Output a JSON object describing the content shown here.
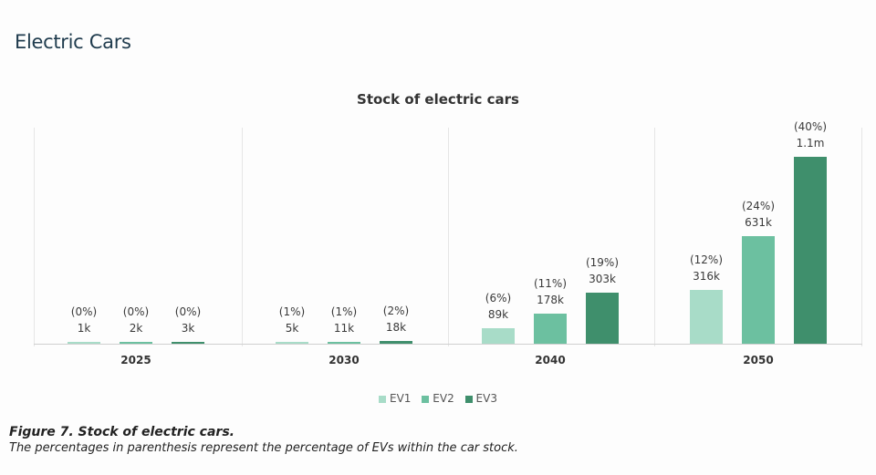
{
  "page": {
    "title": "Electric Cars"
  },
  "chart": {
    "title": "Stock of electric cars",
    "legend": [
      {
        "label": "EV1",
        "color": "#a8dcc8"
      },
      {
        "label": "EV2",
        "color": "#6cc0a0"
      },
      {
        "label": "EV3",
        "color": "#3f8f6c"
      }
    ],
    "groups": [
      {
        "category": "2025",
        "bars": [
          {
            "value": "1k",
            "pct": "(0%)"
          },
          {
            "value": "2k",
            "pct": "(0%)"
          },
          {
            "value": "3k",
            "pct": "(0%)"
          }
        ]
      },
      {
        "category": "2030",
        "bars": [
          {
            "value": "5k",
            "pct": "(1%)"
          },
          {
            "value": "11k",
            "pct": "(1%)"
          },
          {
            "value": "18k",
            "pct": "(2%)"
          }
        ]
      },
      {
        "category": "2040",
        "bars": [
          {
            "value": "89k",
            "pct": "(6%)"
          },
          {
            "value": "178k",
            "pct": "(11%)"
          },
          {
            "value": "303k",
            "pct": "(19%)"
          }
        ]
      },
      {
        "category": "2050",
        "bars": [
          {
            "value": "316k",
            "pct": "(12%)"
          },
          {
            "value": "631k",
            "pct": "(24%)"
          },
          {
            "value": "1.1m",
            "pct": "(40%)"
          }
        ]
      }
    ]
  },
  "caption": {
    "title": "Figure 7. Stock of electric cars.",
    "subtitle": "The percentages in parenthesis represent the percentage of EVs within the car stock."
  },
  "chart_data": {
    "type": "bar",
    "title": "Stock of electric cars",
    "categories": [
      "2025",
      "2030",
      "2040",
      "2050"
    ],
    "series": [
      {
        "name": "EV1",
        "values": [
          1000,
          5000,
          89000,
          316000
        ],
        "percent_of_stock": [
          0,
          1,
          6,
          12
        ]
      },
      {
        "name": "EV2",
        "values": [
          2000,
          11000,
          178000,
          631000
        ],
        "percent_of_stock": [
          0,
          1,
          11,
          24
        ]
      },
      {
        "name": "EV3",
        "values": [
          3000,
          18000,
          303000,
          1100000
        ],
        "percent_of_stock": [
          0,
          2,
          19,
          40
        ]
      }
    ],
    "xlabel": "",
    "ylabel": "",
    "ylim": [
      0,
      1200000
    ],
    "grid": false,
    "legend_position": "bottom",
    "annotations": "Data labels show value with percentage of EVs within car stock in parentheses"
  }
}
